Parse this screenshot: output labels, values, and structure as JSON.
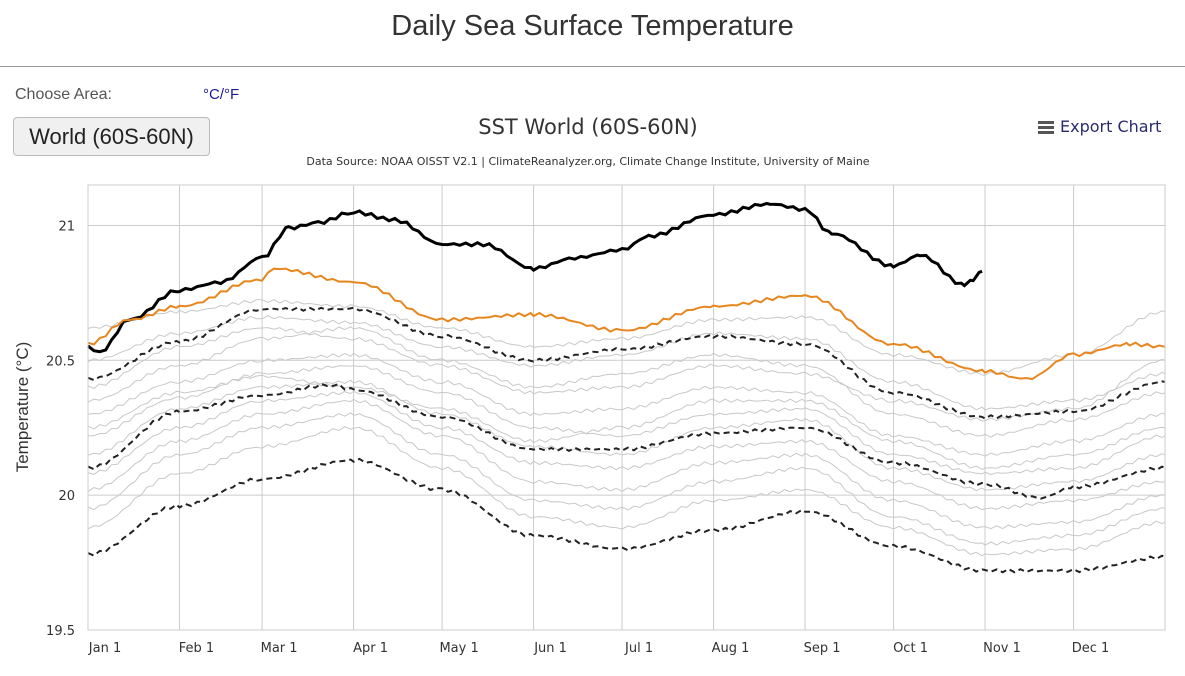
{
  "page": {
    "title": "Daily Sea Surface Temperature",
    "choose_area_label": "Choose Area:",
    "unit_toggle": "°C/°F",
    "area_button": "World (60S-60N)",
    "export_label": "Export Chart",
    "export_icon": "hamburger-menu-icon"
  },
  "chart_data": {
    "type": "line",
    "title": "SST World (60S-60N)",
    "subtitle": "Data Source: NOAA OISST V2.1 | ClimateReanalyzer.org, Climate Change Institute, University of Maine",
    "xlabel": "",
    "ylabel": "Temperature (°C)",
    "ylim": [
      19.5,
      21.15
    ],
    "yticks": [
      19.5,
      20,
      20.5,
      21
    ],
    "xlim": [
      1,
      366
    ],
    "xticks": [
      {
        "day": 1,
        "label": "Jan 1"
      },
      {
        "day": 32,
        "label": "Feb 1"
      },
      {
        "day": 60,
        "label": "Mar 1"
      },
      {
        "day": 91,
        "label": "Apr 1"
      },
      {
        "day": 121,
        "label": "May 1"
      },
      {
        "day": 152,
        "label": "Jun 1"
      },
      {
        "day": 182,
        "label": "Jul 1"
      },
      {
        "day": 213,
        "label": "Aug 1"
      },
      {
        "day": 244,
        "label": "Sep 1"
      },
      {
        "day": 274,
        "label": "Oct 1"
      },
      {
        "day": 305,
        "label": "Nov 1"
      },
      {
        "day": 335,
        "label": "Dec 1"
      }
    ],
    "grid": true,
    "colors": {
      "current": "#000000",
      "previous": "#e8861e",
      "stats": "#222222",
      "years": "#c8c8c8"
    },
    "series": [
      {
        "role": "current",
        "style": "solid-thick",
        "x": [
          1,
          5,
          15,
          32,
          46,
          60,
          69,
          79,
          91,
          105,
          121,
          135,
          152,
          166,
          182,
          191,
          213,
          232,
          244,
          253,
          274,
          283,
          298,
          301,
          304
        ],
        "values": [
          20.55,
          20.53,
          20.65,
          20.76,
          20.79,
          20.88,
          20.99,
          21.01,
          21.05,
          21.02,
          20.93,
          20.93,
          20.84,
          20.88,
          20.91,
          20.96,
          21.04,
          21.08,
          21.06,
          20.97,
          20.85,
          20.89,
          20.78,
          20.8,
          20.83
        ]
      },
      {
        "role": "previous",
        "style": "solid",
        "x": [
          1,
          15,
          32,
          60,
          64,
          91,
          121,
          152,
          182,
          213,
          244,
          274,
          305,
          319,
          335,
          354,
          366
        ],
        "values": [
          20.56,
          20.65,
          20.7,
          20.8,
          20.84,
          20.79,
          20.65,
          20.67,
          20.61,
          20.7,
          20.74,
          20.56,
          20.46,
          20.43,
          20.52,
          20.56,
          20.55
        ]
      },
      {
        "role": "plus-2-sigma",
        "style": "dashed",
        "x": [
          1,
          32,
          60,
          91,
          121,
          152,
          182,
          213,
          244,
          274,
          305,
          335,
          366
        ],
        "values": [
          20.43,
          20.57,
          20.69,
          20.69,
          20.59,
          20.5,
          20.54,
          20.59,
          20.56,
          20.38,
          20.29,
          20.31,
          20.42
        ]
      },
      {
        "role": "mean",
        "style": "dashed",
        "x": [
          1,
          32,
          60,
          84,
          91,
          121,
          152,
          182,
          213,
          244,
          274,
          305,
          324,
          335,
          366
        ],
        "values": [
          20.1,
          20.31,
          20.37,
          20.41,
          20.39,
          20.29,
          20.17,
          20.17,
          20.23,
          20.25,
          20.12,
          20.04,
          19.99,
          20.03,
          20.1
        ]
      },
      {
        "role": "minus-2-sigma",
        "style": "dashed",
        "x": [
          1,
          32,
          60,
          91,
          121,
          152,
          182,
          213,
          244,
          274,
          305,
          335,
          366
        ],
        "values": [
          19.78,
          19.96,
          20.06,
          20.13,
          20.02,
          19.85,
          19.8,
          19.87,
          19.94,
          19.81,
          19.72,
          19.72,
          19.77
        ]
      }
    ],
    "year_series_x": [
      1,
      32,
      60,
      91,
      121,
      152,
      182,
      213,
      244,
      274,
      305,
      335,
      366
    ],
    "year_series": [
      [
        20.62,
        20.68,
        20.72,
        20.7,
        20.62,
        20.55,
        20.58,
        20.65,
        20.66,
        20.52,
        20.45,
        20.52,
        20.68
      ],
      [
        20.5,
        20.6,
        20.66,
        20.64,
        20.55,
        20.48,
        20.52,
        20.6,
        20.58,
        20.42,
        20.32,
        20.35,
        20.45
      ],
      [
        20.35,
        20.48,
        20.58,
        20.62,
        20.5,
        20.4,
        20.45,
        20.52,
        20.48,
        20.3,
        20.22,
        20.28,
        20.38
      ],
      [
        20.3,
        20.42,
        20.5,
        20.52,
        20.42,
        20.3,
        20.32,
        20.4,
        20.38,
        20.22,
        20.15,
        20.2,
        20.3
      ],
      [
        20.22,
        20.36,
        20.45,
        20.48,
        20.38,
        20.25,
        20.22,
        20.3,
        20.32,
        20.15,
        20.08,
        20.1,
        20.22
      ],
      [
        20.15,
        20.32,
        20.4,
        20.42,
        20.3,
        20.18,
        20.15,
        20.25,
        20.28,
        20.1,
        20.02,
        20.05,
        20.15
      ],
      [
        20.08,
        20.25,
        20.35,
        20.38,
        20.25,
        20.12,
        20.1,
        20.18,
        20.2,
        20.05,
        19.95,
        19.98,
        20.05
      ],
      [
        20.02,
        20.2,
        20.3,
        20.35,
        20.22,
        20.05,
        20.02,
        20.12,
        20.15,
        19.98,
        19.88,
        19.9,
        20.0
      ],
      [
        19.95,
        20.15,
        20.25,
        20.3,
        20.15,
        19.98,
        19.95,
        20.05,
        20.1,
        19.92,
        19.82,
        19.85,
        19.95
      ],
      [
        19.88,
        20.08,
        20.18,
        20.25,
        20.1,
        19.92,
        19.88,
        19.98,
        20.02,
        19.88,
        19.78,
        19.8,
        19.9
      ],
      [
        20.4,
        20.55,
        20.62,
        20.58,
        20.48,
        20.38,
        20.4,
        20.48,
        20.45,
        20.35,
        20.28,
        20.32,
        20.5
      ],
      [
        20.25,
        20.38,
        20.44,
        20.4,
        20.32,
        20.2,
        20.25,
        20.35,
        20.35,
        20.2,
        20.1,
        20.15,
        20.25
      ]
    ]
  }
}
